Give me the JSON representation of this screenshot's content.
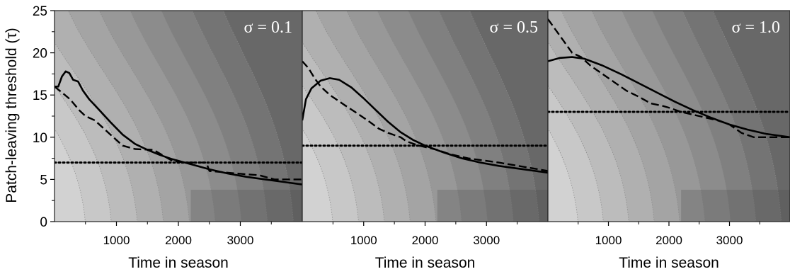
{
  "chart_data": {
    "type": "line",
    "ylabel": "Patch-leaving threshold (τ)",
    "ylim": [
      0,
      25
    ],
    "xlim": [
      0,
      4000
    ],
    "yticks": [
      0,
      5,
      10,
      15,
      20,
      25
    ],
    "xticks": [
      1000,
      2000,
      3000
    ],
    "grid": false,
    "panels": [
      {
        "annotation": "σ = 0.1",
        "xlabel": "Time in season",
        "series": [
          {
            "style": "solid",
            "points": [
              [
                0,
                16
              ],
              [
                60,
                16
              ],
              [
                120,
                17.2
              ],
              [
                180,
                17.8
              ],
              [
                240,
                17.6
              ],
              [
                300,
                16.8
              ],
              [
                380,
                16.6
              ],
              [
                460,
                15.5
              ],
              [
                560,
                14.5
              ],
              [
                700,
                13.4
              ],
              [
                900,
                11.8
              ],
              [
                1100,
                10.3
              ],
              [
                1300,
                9.2
              ],
              [
                1500,
                8.5
              ],
              [
                1700,
                7.9
              ],
              [
                1900,
                7.4
              ],
              [
                2200,
                6.8
              ],
              [
                2500,
                6.2
              ],
              [
                2800,
                5.7
              ],
              [
                3100,
                5.3
              ],
              [
                3400,
                5.0
              ],
              [
                3700,
                4.7
              ],
              [
                4000,
                4.4
              ]
            ]
          },
          {
            "style": "dashed",
            "points": [
              [
                0,
                16
              ],
              [
                120,
                15.3
              ],
              [
                250,
                14.5
              ],
              [
                400,
                13.2
              ],
              [
                500,
                12.5
              ],
              [
                650,
                12.0
              ],
              [
                800,
                11.0
              ],
              [
                950,
                10.0
              ],
              [
                1100,
                9.0
              ],
              [
                1300,
                8.6
              ],
              [
                1600,
                8.5
              ],
              [
                1900,
                7.2
              ],
              [
                2100,
                7.0
              ],
              [
                2450,
                7.0
              ],
              [
                2500,
                6.0
              ],
              [
                2800,
                5.8
              ],
              [
                3100,
                5.6
              ],
              [
                3300,
                5.5
              ],
              [
                3550,
                5.0
              ],
              [
                4000,
                5.0
              ]
            ]
          },
          {
            "style": "dotted",
            "points": [
              [
                0,
                7
              ],
              [
                4000,
                7
              ]
            ]
          }
        ]
      },
      {
        "annotation": "σ = 0.5",
        "xlabel": "Time in season",
        "series": [
          {
            "style": "solid",
            "points": [
              [
                0,
                12
              ],
              [
                60,
                14.5
              ],
              [
                150,
                15.8
              ],
              [
                300,
                16.7
              ],
              [
                450,
                17.0
              ],
              [
                600,
                16.8
              ],
              [
                800,
                15.9
              ],
              [
                1000,
                14.6
              ],
              [
                1200,
                13.2
              ],
              [
                1400,
                11.8
              ],
              [
                1600,
                10.6
              ],
              [
                1800,
                9.7
              ],
              [
                2000,
                9.0
              ],
              [
                2300,
                8.2
              ],
              [
                2600,
                7.5
              ],
              [
                2900,
                7.0
              ],
              [
                3200,
                6.6
              ],
              [
                3500,
                6.3
              ],
              [
                3800,
                6.0
              ],
              [
                4000,
                5.8
              ]
            ]
          },
          {
            "style": "dashed",
            "points": [
              [
                0,
                19
              ],
              [
                100,
                18.2
              ],
              [
                200,
                17
              ],
              [
                300,
                16
              ],
              [
                450,
                15
              ],
              [
                650,
                14
              ],
              [
                900,
                12.8
              ],
              [
                1100,
                11.8
              ],
              [
                1250,
                11.0
              ],
              [
                1400,
                10.5
              ],
              [
                1600,
                10.0
              ],
              [
                1700,
                9.5
              ],
              [
                1900,
                9.0
              ],
              [
                2200,
                8.5
              ],
              [
                2400,
                8.0
              ],
              [
                2700,
                7.5
              ],
              [
                3200,
                7.0
              ],
              [
                3600,
                6.5
              ],
              [
                4000,
                6.0
              ]
            ]
          },
          {
            "style": "dotted",
            "points": [
              [
                0,
                9
              ],
              [
                4000,
                9
              ]
            ]
          }
        ]
      },
      {
        "annotation": "σ = 1.0",
        "xlabel": "Time in season",
        "series": [
          {
            "style": "solid",
            "points": [
              [
                0,
                19
              ],
              [
                200,
                19.4
              ],
              [
                400,
                19.5
              ],
              [
                600,
                19.3
              ],
              [
                900,
                18.5
              ],
              [
                1200,
                17.5
              ],
              [
                1500,
                16.4
              ],
              [
                1800,
                15.3
              ],
              [
                2100,
                14.2
              ],
              [
                2400,
                13.2
              ],
              [
                2700,
                12.3
              ],
              [
                3000,
                11.5
              ],
              [
                3300,
                10.9
              ],
              [
                3600,
                10.4
              ],
              [
                4000,
                10.0
              ]
            ]
          },
          {
            "style": "dashed",
            "points": [
              [
                0,
                24
              ],
              [
                100,
                23
              ],
              [
                250,
                21.5
              ],
              [
                400,
                20
              ],
              [
                550,
                19.5
              ],
              [
                700,
                18.5
              ],
              [
                900,
                17.5
              ],
              [
                1100,
                16.5
              ],
              [
                1300,
                15.5
              ],
              [
                1500,
                14.8
              ],
              [
                1700,
                14.0
              ],
              [
                1900,
                13.7
              ],
              [
                2000,
                13.5
              ],
              [
                2200,
                13.0
              ],
              [
                2500,
                12.5
              ],
              [
                2800,
                12.0
              ],
              [
                3000,
                11.5
              ],
              [
                3200,
                10.5
              ],
              [
                3400,
                10.0
              ],
              [
                3600,
                10.0
              ],
              [
                4000,
                10.0
              ]
            ]
          },
          {
            "style": "dotted",
            "points": [
              [
                0,
                13
              ],
              [
                4000,
                13
              ]
            ]
          }
        ]
      }
    ]
  }
}
